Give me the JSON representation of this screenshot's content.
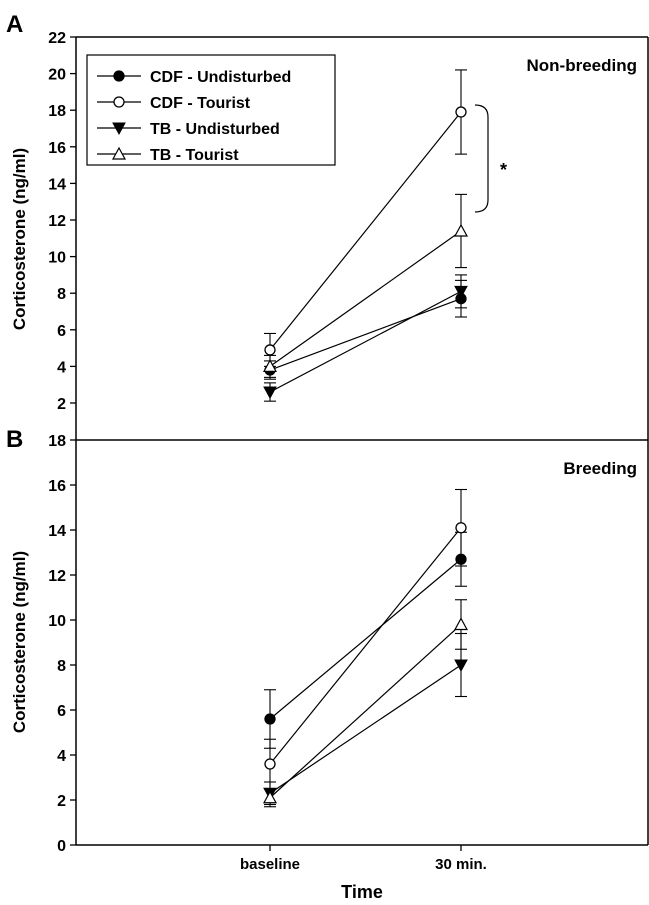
{
  "figure": {
    "xlabel": "Time",
    "ylabel": "Corticosterone (ng/ml)",
    "x_categories": [
      "baseline",
      "30 min."
    ]
  },
  "legend": {
    "entries": [
      {
        "label": "CDF - Undisturbed",
        "marker": "circle-filled"
      },
      {
        "label": "CDF - Tourist",
        "marker": "circle-open"
      },
      {
        "label": "TB - Undisturbed",
        "marker": "triangle-down-filled"
      },
      {
        "label": "TB - Tourist",
        "marker": "triangle-up-open"
      }
    ]
  },
  "chart_data": [
    {
      "type": "line",
      "panel_label": "A",
      "title": "Non-breeding",
      "categories": [
        "baseline",
        "30 min."
      ],
      "ylabel": "Corticosterone (ng/ml)",
      "ylim": [
        2,
        22
      ],
      "yticks": [
        2,
        4,
        6,
        8,
        10,
        12,
        14,
        16,
        18,
        20,
        22
      ],
      "series": [
        {
          "name": "CDF - Undisturbed",
          "marker": "circle-filled",
          "values": [
            3.8,
            7.7
          ],
          "err": [
            0.5,
            1.0
          ]
        },
        {
          "name": "CDF - Tourist",
          "marker": "circle-open",
          "values": [
            4.9,
            17.9
          ],
          "err": [
            0.9,
            2.3
          ]
        },
        {
          "name": "TB - Undisturbed",
          "marker": "triangle-down-filled",
          "values": [
            2.6,
            8.1
          ],
          "err": [
            0.5,
            0.9
          ]
        },
        {
          "name": "TB - Tourist",
          "marker": "triangle-up-open",
          "values": [
            4.0,
            11.4
          ],
          "err": [
            0.6,
            2.0
          ]
        }
      ],
      "annotation": {
        "text": "*",
        "between": [
          "CDF - Tourist",
          "TB - Tourist"
        ],
        "at": "30 min."
      }
    },
    {
      "type": "line",
      "panel_label": "B",
      "title": "Breeding",
      "categories": [
        "baseline",
        "30 min."
      ],
      "xlabel": "Time",
      "ylabel": "Corticosterone (ng/ml)",
      "ylim": [
        0,
        18
      ],
      "yticks": [
        0,
        2,
        4,
        6,
        8,
        10,
        12,
        14,
        16,
        18
      ],
      "series": [
        {
          "name": "CDF - Undisturbed",
          "marker": "circle-filled",
          "values": [
            5.6,
            12.7
          ],
          "err": [
            1.3,
            1.2
          ]
        },
        {
          "name": "CDF - Tourist",
          "marker": "circle-open",
          "values": [
            3.6,
            14.1
          ],
          "err": [
            1.1,
            1.7
          ]
        },
        {
          "name": "TB - Undisturbed",
          "marker": "triangle-down-filled",
          "values": [
            2.3,
            8.0
          ],
          "err": [
            0.5,
            1.4
          ]
        },
        {
          "name": "TB - Tourist",
          "marker": "triangle-up-open",
          "values": [
            2.1,
            9.8
          ],
          "err": [
            0.4,
            1.1
          ]
        }
      ]
    }
  ]
}
